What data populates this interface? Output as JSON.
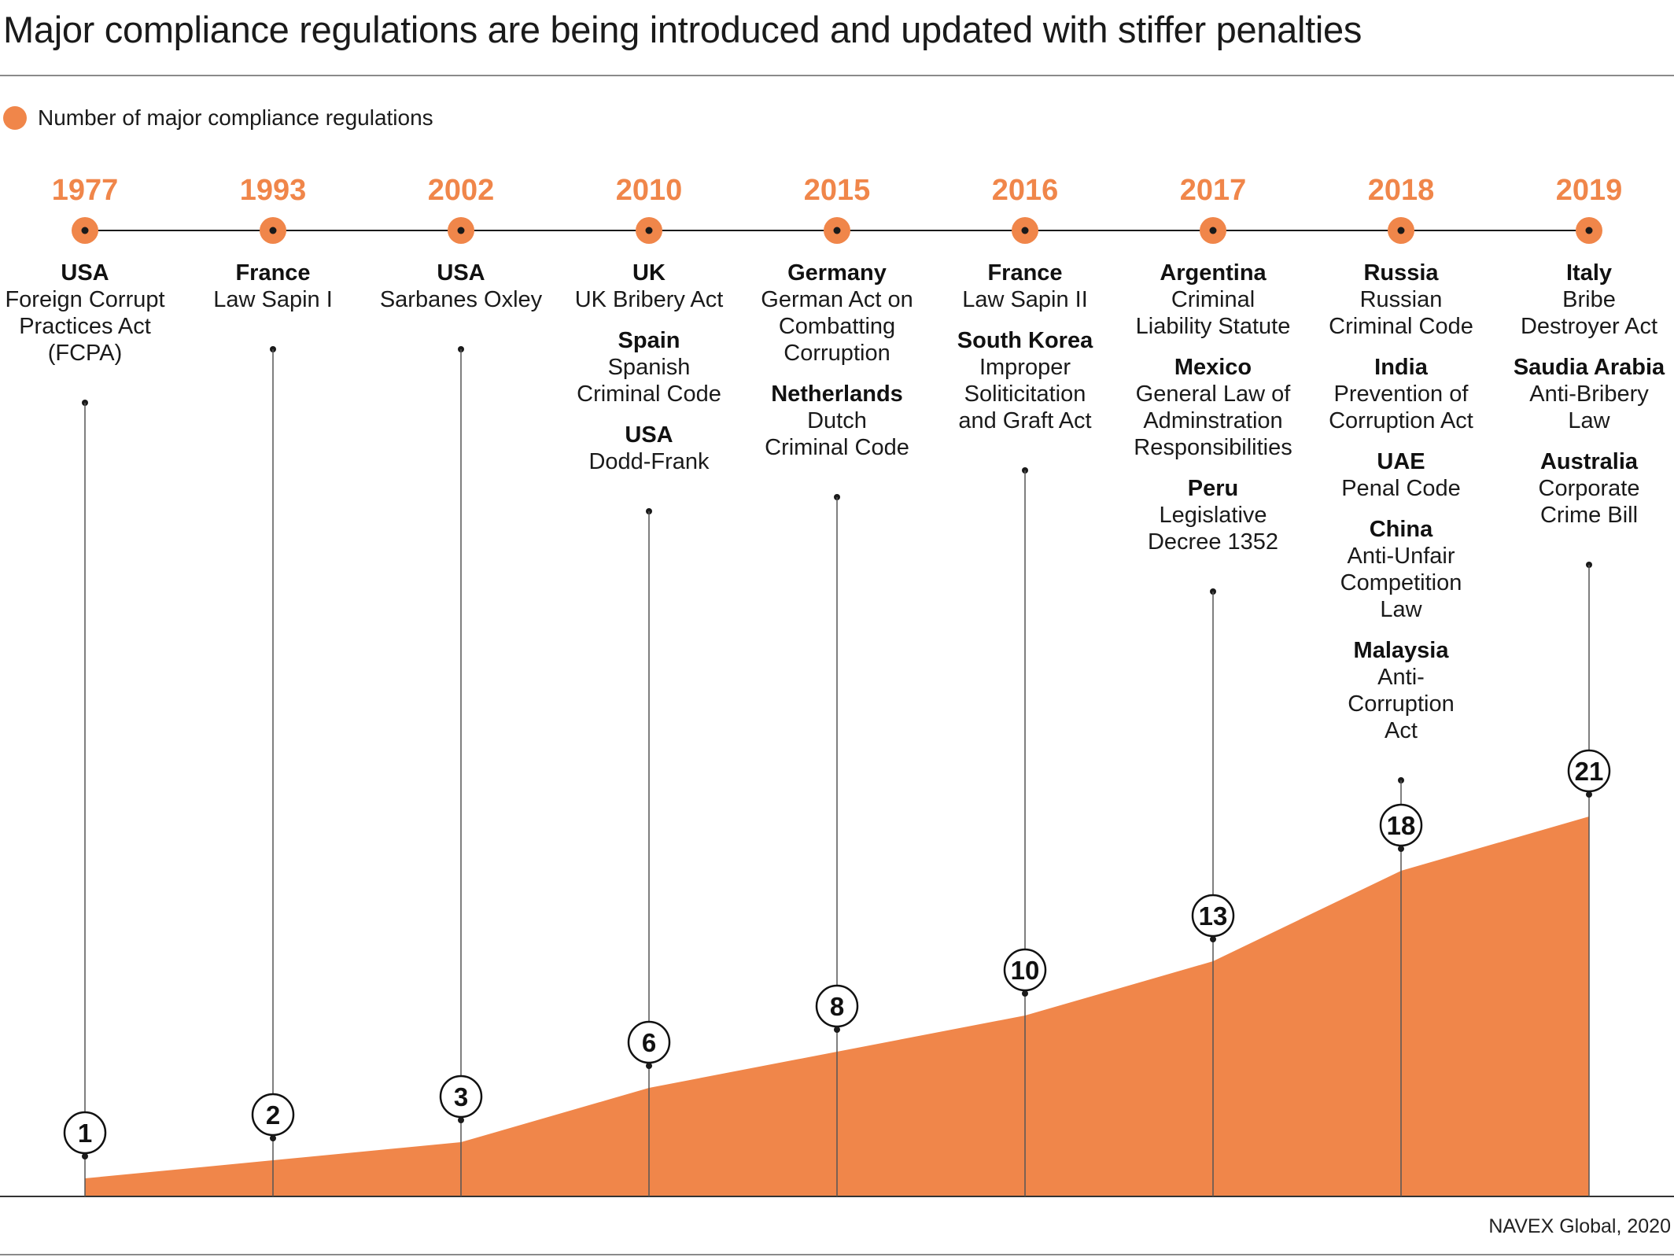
{
  "header": {
    "title": "Major compliance regulations are being introduced and updated with stiffer penalties"
  },
  "legend": {
    "label": "Number of major compliance regulations",
    "color": "#f0864a"
  },
  "source": "NAVEX Global, 2020",
  "colors": {
    "accent": "#f0864a",
    "text": "#1a1a1a",
    "line": "#8a8a8a"
  },
  "chart_data": {
    "type": "area",
    "x": [
      "1977",
      "1993",
      "2002",
      "2010",
      "2015",
      "2016",
      "2017",
      "2018",
      "2019"
    ],
    "series": [
      {
        "name": "Number of major compliance regulations",
        "values": [
          1,
          2,
          3,
          6,
          8,
          10,
          13,
          18,
          21
        ]
      }
    ],
    "ylim": [
      0,
      21
    ],
    "grid": false,
    "legend_position": "top-left",
    "events": [
      {
        "year": "1977",
        "count": 1,
        "laws": [
          {
            "country": "USA",
            "name": [
              "Foreign Corrupt",
              "Practices Act",
              "(FCPA)"
            ]
          }
        ]
      },
      {
        "year": "1993",
        "count": 2,
        "laws": [
          {
            "country": "France",
            "name": [
              "Law Sapin I"
            ]
          }
        ]
      },
      {
        "year": "2002",
        "count": 3,
        "laws": [
          {
            "country": "USA",
            "name": [
              "Sarbanes Oxley"
            ]
          }
        ]
      },
      {
        "year": "2010",
        "count": 6,
        "laws": [
          {
            "country": "UK",
            "name": [
              "UK Bribery Act"
            ]
          },
          {
            "country": "Spain",
            "name": [
              "Spanish",
              "Criminal Code"
            ]
          },
          {
            "country": "USA",
            "name": [
              "Dodd-Frank"
            ]
          }
        ]
      },
      {
        "year": "2015",
        "count": 8,
        "laws": [
          {
            "country": "Germany",
            "name": [
              "German Act on",
              "Combatting",
              "Corruption"
            ]
          },
          {
            "country": "Netherlands",
            "name": [
              "Dutch",
              "Criminal Code"
            ]
          }
        ]
      },
      {
        "year": "2016",
        "count": 10,
        "laws": [
          {
            "country": "France",
            "name": [
              "Law Sapin II"
            ]
          },
          {
            "country": "South Korea",
            "name": [
              "Improper",
              "Soliticitation",
              "and Graft Act"
            ]
          }
        ]
      },
      {
        "year": "2017",
        "count": 13,
        "laws": [
          {
            "country": "Argentina",
            "name": [
              "Criminal",
              "Liability Statute"
            ]
          },
          {
            "country": "Mexico",
            "name": [
              "General Law of",
              "Adminstration",
              "Responsibilities"
            ]
          },
          {
            "country": "Peru",
            "name": [
              "Legislative",
              "Decree 1352"
            ]
          }
        ]
      },
      {
        "year": "2018",
        "count": 18,
        "laws": [
          {
            "country": "Russia",
            "name": [
              "Russian",
              "Criminal Code"
            ]
          },
          {
            "country": "India",
            "name": [
              "Prevention of",
              "Corruption Act"
            ]
          },
          {
            "country": "UAE",
            "name": [
              "Penal Code"
            ]
          },
          {
            "country": "China",
            "name": [
              "Anti-Unfair",
              "Competition",
              "Law"
            ]
          },
          {
            "country": "Malaysia",
            "name": [
              "Anti-",
              "Corruption",
              "Act"
            ]
          }
        ]
      },
      {
        "year": "2019",
        "count": 21,
        "laws": [
          {
            "country": "Italy",
            "name": [
              "Bribe",
              "Destroyer Act"
            ]
          },
          {
            "country": "Saudia Arabia",
            "name": [
              "Anti-Bribery",
              "Law"
            ]
          },
          {
            "country": "Australia",
            "name": [
              "Corporate",
              "Crime Bill"
            ]
          }
        ]
      }
    ]
  }
}
